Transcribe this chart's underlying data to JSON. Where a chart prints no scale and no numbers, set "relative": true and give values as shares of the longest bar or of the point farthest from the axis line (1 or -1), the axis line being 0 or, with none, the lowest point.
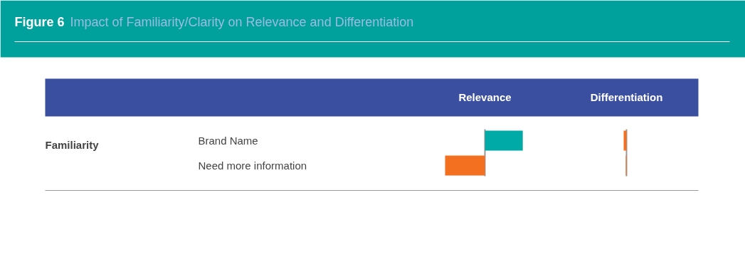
{
  "chart_data": [
    {
      "type": "other",
      "title": "Figure 6",
      "subtitle": "Impact of Familiarity/Clarity on Relevance and Differentiation"
    },
    {
      "type": "bar",
      "orientation": "horizontal",
      "relative": true,
      "title": "Relevance",
      "ylabel": "Familiarity",
      "categories": [
        "Brand Name",
        "Need more information"
      ],
      "values": [
        0.95,
        -1
      ],
      "colors": [
        "#00aaa6",
        "#f37021"
      ],
      "tick_labels": "y"
    },
    {
      "type": "bar",
      "orientation": "horizontal",
      "relative": true,
      "title": "Differentiation",
      "values": [
        -1,
        -0.25
      ],
      "colors": [
        "#f37021",
        "#f37021"
      ],
      "tick_labels": false
    }
  ]
}
